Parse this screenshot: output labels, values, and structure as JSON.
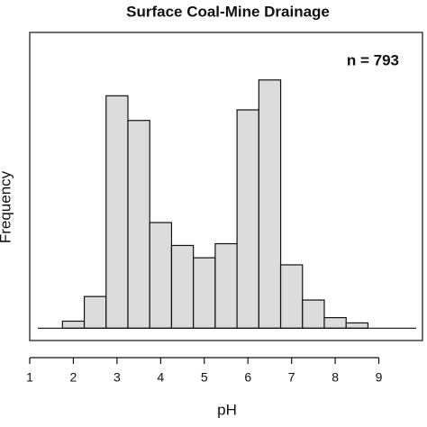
{
  "chart_data": {
    "type": "histogram",
    "title": "Surface Coal-Mine Drainage",
    "annotation": "n = 793",
    "x_label": "pH",
    "y_label": "Frequency",
    "bins": [
      1.75,
      2.25,
      2.75,
      3.25,
      3.75,
      4.25,
      4.75,
      5.25,
      5.75,
      6.25,
      6.75,
      7.25,
      7.75,
      8.25,
      8.75
    ],
    "values": [
      4,
      18,
      132,
      118,
      60,
      47,
      40,
      48,
      124,
      141,
      36,
      16,
      6,
      3
    ],
    "color": "#dcdcdc",
    "xlim": [
      1,
      10
    ],
    "xticks": [
      1,
      2,
      3,
      4,
      5,
      6,
      7,
      8,
      9
    ],
    "ylim": [
      -7,
      168
    ]
  }
}
